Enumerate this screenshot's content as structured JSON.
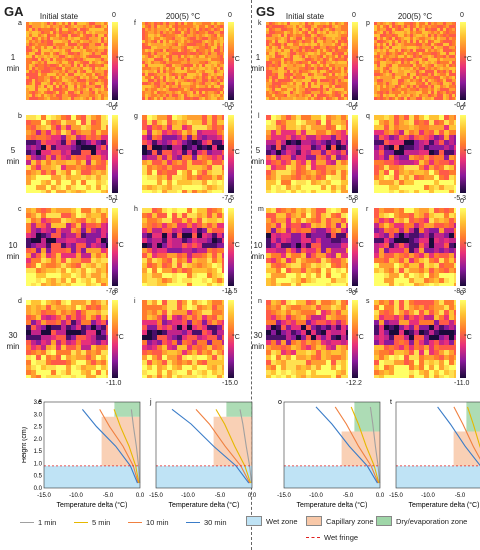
{
  "groups": [
    "GA",
    "GS"
  ],
  "column_headers": [
    "Initial state",
    "200(5) °C"
  ],
  "row_labels": [
    {
      "num": "1",
      "unit": "min"
    },
    {
      "num": "5",
      "unit": "min"
    },
    {
      "num": "10",
      "unit": "min"
    },
    {
      "num": "30",
      "unit": "min"
    }
  ],
  "colorbar": {
    "unit": "°C",
    "top": "0"
  },
  "panels": {
    "GA_initial": [
      {
        "letter": "a",
        "min": "-0.4"
      },
      {
        "letter": "b",
        "min": "-5.1"
      },
      {
        "letter": "c",
        "min": "-7.8"
      },
      {
        "letter": "d",
        "min": "-11.0"
      }
    ],
    "GA_heated": [
      {
        "letter": "f",
        "min": "-0.5"
      },
      {
        "letter": "g",
        "min": "-7.5"
      },
      {
        "letter": "h",
        "min": "-11.5"
      },
      {
        "letter": "i",
        "min": "-15.0"
      }
    ],
    "GS_initial": [
      {
        "letter": "k",
        "min": "-0.4"
      },
      {
        "letter": "l",
        "min": "-5.8"
      },
      {
        "letter": "m",
        "min": "-9.4"
      },
      {
        "letter": "n",
        "min": "-12.2"
      }
    ],
    "GS_heated": [
      {
        "letter": "p",
        "min": "-0.4"
      },
      {
        "letter": "q",
        "min": "-5.3"
      },
      {
        "letter": "r",
        "min": "-8.3"
      },
      {
        "letter": "s",
        "min": "-11.0"
      }
    ]
  },
  "chart_letters": [
    "e",
    "j",
    "o",
    "t"
  ],
  "chart_data": {
    "type": "line",
    "xlabel": "Temperature delta (°C)",
    "ylabel": "Height (cm)",
    "xlim": [
      -15.0,
      0.0
    ],
    "ylim": [
      0,
      3.5
    ],
    "x_ticks": [
      "-15.0",
      "-10.0",
      "-5.0",
      "0.0"
    ],
    "y_ticks": [
      "0.0",
      "0.5",
      "1.0",
      "1.5",
      "2.0",
      "2.5",
      "3.0",
      "3.5"
    ]
  },
  "legend": {
    "lines": [
      {
        "label": "1 min",
        "color": "#a0a0a0"
      },
      {
        "label": "5 min",
        "color": "#e6b800"
      },
      {
        "label": "10 min",
        "color": "#f08040"
      },
      {
        "label": "30 min",
        "color": "#3a7cc8"
      }
    ],
    "zones": [
      {
        "label": "Wet zone",
        "color": "#bfe3f5"
      },
      {
        "label": "Capillary zone",
        "color": "#f8c8a8"
      },
      {
        "label": "Dry/evaporation zone",
        "color": "#9fd6a8"
      }
    ],
    "fringe": {
      "label": "Wet fringe",
      "color": "#e02020"
    }
  }
}
